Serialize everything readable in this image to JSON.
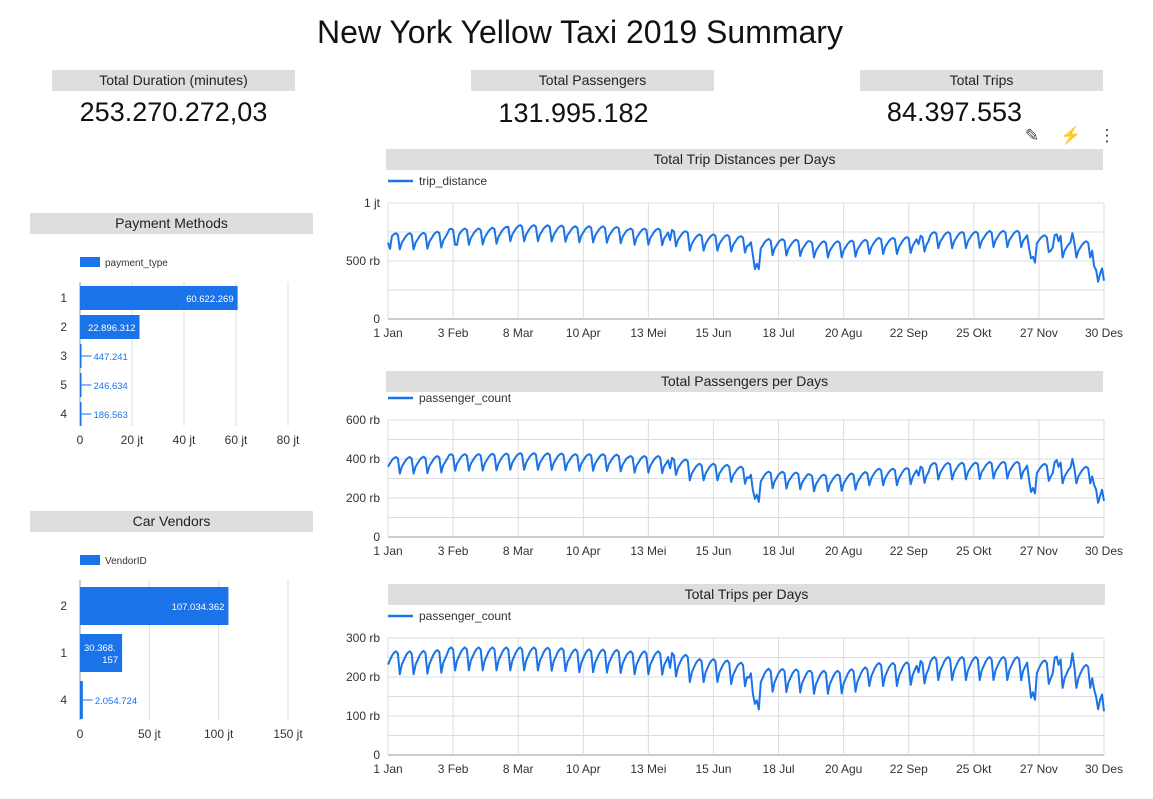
{
  "page_title": "New York Yellow Taxi 2019 Summary",
  "scorecards": [
    {
      "label": "Total Duration (minutes)",
      "value": "253.270.272,03"
    },
    {
      "label": "Total Passengers",
      "value": "131.995.182"
    },
    {
      "label": "Total Trips",
      "value": "84.397.553"
    }
  ],
  "toolbar": {
    "edit_icon": "pencil-icon",
    "quick_icon": "lightning-icon",
    "more_icon": "more-vert-icon"
  },
  "colors": {
    "series": "#1a73e8",
    "bar": "#1a73e8",
    "header_bg": "#dedede",
    "grid": "#dadce0"
  },
  "chart_data": [
    {
      "type": "bar",
      "orientation": "horizontal",
      "title": "Payment Methods",
      "legend": "payment_type",
      "legend_position": "top-left",
      "categories": [
        "1",
        "2",
        "3",
        "5",
        "4"
      ],
      "values": [
        60622269,
        22896312,
        447241,
        246634,
        186563
      ],
      "value_labels": [
        "60.622.269",
        "22.896.312",
        "447.241",
        "246.634",
        "186.563"
      ],
      "xlim": [
        0,
        80000000
      ],
      "xticks": [
        "0",
        "20 jt",
        "40 jt",
        "60 jt",
        "80 jt"
      ],
      "grid": true
    },
    {
      "type": "bar",
      "orientation": "horizontal",
      "title": "Car Vendors",
      "legend": "VendorID",
      "legend_position": "top-left",
      "categories": [
        "2",
        "1",
        "4"
      ],
      "values": [
        107034362,
        30368157,
        2054724
      ],
      "value_labels": [
        "107.034.362",
        "30.368.157",
        "2.054.724"
      ],
      "xlim": [
        0,
        150000000
      ],
      "xticks": [
        "0",
        "50 jt",
        "100 jt",
        "150 jt"
      ],
      "grid": true
    },
    {
      "type": "line",
      "title": "Total Trip Distances per Days",
      "legend": "trip_distance",
      "legend_position": "top-left",
      "x_start": "2019-01-01",
      "x_end": "2019-12-30",
      "xticks": [
        "1 Jan",
        "3 Feb",
        "8 Mar",
        "10 Apr",
        "13 Mei",
        "15 Jun",
        "18 Jul",
        "20 Agu",
        "22 Sep",
        "25 Okt",
        "27 Nov",
        "30 Des"
      ],
      "ylim": [
        0,
        1000000
      ],
      "yticks": [
        [
          0,
          "0"
        ],
        [
          500000,
          "500 rb"
        ],
        [
          1000000,
          "1 jt"
        ]
      ],
      "grid": true,
      "monthly_avg": [
        690000,
        730000,
        760000,
        750000,
        730000,
        680000,
        640000,
        620000,
        650000,
        700000,
        710000,
        620000
      ],
      "weekly_amplitude": 90000,
      "dips": [
        [
          1,
          80000
        ],
        [
          35,
          60000
        ],
        [
          143,
          80000
        ],
        [
          185,
          130000
        ],
        [
          186,
          260000
        ],
        [
          187,
          200000
        ],
        [
          188,
          120000
        ],
        [
          269,
          60000
        ],
        [
          325,
          120000
        ],
        [
          326,
          220000
        ],
        [
          327,
          190000
        ],
        [
          328,
          110000
        ],
        [
          358,
          160000
        ],
        [
          359,
          220000
        ],
        [
          360,
          340000
        ],
        [
          361,
          280000
        ],
        [
          362,
          220000
        ],
        [
          363,
          200000
        ],
        [
          364,
          200000
        ]
      ],
      "bumps": [
        [
          338,
          80000
        ],
        [
          339,
          70000
        ],
        [
          341,
          60000
        ],
        [
          347,
          70000
        ]
      ]
    },
    {
      "type": "line",
      "title": "Total Passengers per Days",
      "legend": "passenger_count",
      "legend_position": "top-left",
      "x_start": "2019-01-01",
      "x_end": "2019-12-30",
      "xticks": [
        "1 Jan",
        "3 Feb",
        "8 Mar",
        "10 Apr",
        "13 Mei",
        "15 Jun",
        "18 Jul",
        "20 Agu",
        "22 Sep",
        "25 Okt",
        "27 Nov",
        "30 Des"
      ],
      "ylim": [
        0,
        600000
      ],
      "yticks": [
        [
          0,
          "0"
        ],
        [
          200000,
          "200 rb"
        ],
        [
          400000,
          "400 rb"
        ],
        [
          600000,
          "600 rb"
        ]
      ],
      "grid": true,
      "monthly_avg": [
        380000,
        395000,
        400000,
        395000,
        385000,
        345000,
        305000,
        290000,
        320000,
        350000,
        355000,
        330000
      ],
      "weekly_amplitude": 55000,
      "dips": [
        [
          143,
          50000
        ],
        [
          185,
          90000
        ],
        [
          186,
          140000
        ],
        [
          187,
          110000
        ],
        [
          188,
          70000
        ],
        [
          269,
          40000
        ],
        [
          325,
          80000
        ],
        [
          326,
          150000
        ],
        [
          327,
          120000
        ],
        [
          328,
          70000
        ],
        [
          358,
          60000
        ],
        [
          359,
          100000
        ],
        [
          360,
          180000
        ],
        [
          361,
          150000
        ],
        [
          362,
          110000
        ],
        [
          363,
          90000
        ],
        [
          364,
          90000
        ]
      ],
      "bumps": [
        [
          338,
          40000
        ],
        [
          339,
          40000
        ],
        [
          341,
          30000
        ],
        [
          347,
          40000
        ]
      ]
    },
    {
      "type": "line",
      "title": "Total Trips per Days",
      "legend": "passenger_count",
      "legend_position": "top-left",
      "x_start": "2019-01-01",
      "x_end": "2019-12-30",
      "xticks": [
        "1 Jan",
        "3 Feb",
        "8 Mar",
        "10 Apr",
        "13 Mei",
        "15 Jun",
        "18 Jul",
        "20 Agu",
        "22 Sep",
        "25 Okt",
        "27 Nov",
        "30 Des"
      ],
      "ylim": [
        0,
        300000
      ],
      "yticks": [
        [
          0,
          "0"
        ],
        [
          100000,
          "100 rb"
        ],
        [
          200000,
          "200 rb"
        ],
        [
          300000,
          "300 rb"
        ]
      ],
      "grid": true,
      "monthly_avg": [
        245000,
        255000,
        255000,
        250000,
        245000,
        225000,
        200000,
        195000,
        215000,
        230000,
        230000,
        210000
      ],
      "weekly_amplitude": 38000,
      "dips": [
        [
          143,
          35000
        ],
        [
          185,
          60000
        ],
        [
          186,
          90000
        ],
        [
          187,
          75000
        ],
        [
          188,
          45000
        ],
        [
          269,
          25000
        ],
        [
          325,
          50000
        ],
        [
          326,
          100000
        ],
        [
          327,
          80000
        ],
        [
          328,
          45000
        ],
        [
          358,
          40000
        ],
        [
          359,
          70000
        ],
        [
          360,
          110000
        ],
        [
          361,
          90000
        ],
        [
          362,
          70000
        ],
        [
          363,
          60000
        ],
        [
          364,
          60000
        ]
      ],
      "bumps": [
        [
          338,
          30000
        ],
        [
          339,
          25000
        ],
        [
          341,
          20000
        ],
        [
          347,
          30000
        ]
      ]
    }
  ]
}
